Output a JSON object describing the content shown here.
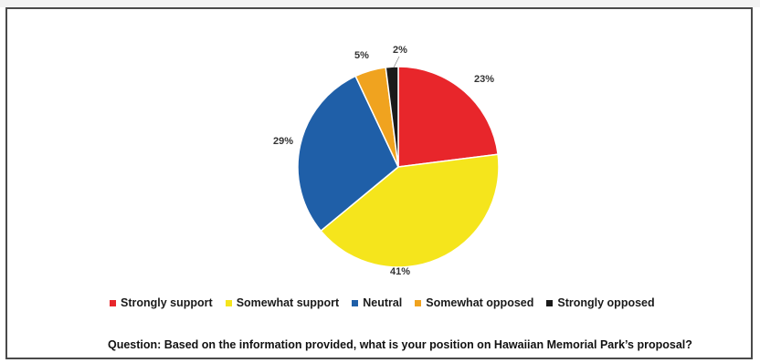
{
  "chart_data": {
    "type": "pie",
    "categories": [
      "Strongly support",
      "Somewhat support",
      "Neutral",
      "Somewhat opposed",
      "Strongly opposed"
    ],
    "values": [
      23,
      41,
      29,
      5,
      2
    ],
    "value_labels": [
      "23%",
      "41%",
      "29%",
      "5%",
      "2%"
    ],
    "colors": [
      "#e8262b",
      "#f5e51c",
      "#1f5fa8",
      "#f0a31f",
      "#1a1a1a"
    ],
    "legend_position": "bottom",
    "title": ""
  },
  "question": "Question:  Based on the information provided, what is your position on Hawaiian Memorial Park’s proposal?"
}
